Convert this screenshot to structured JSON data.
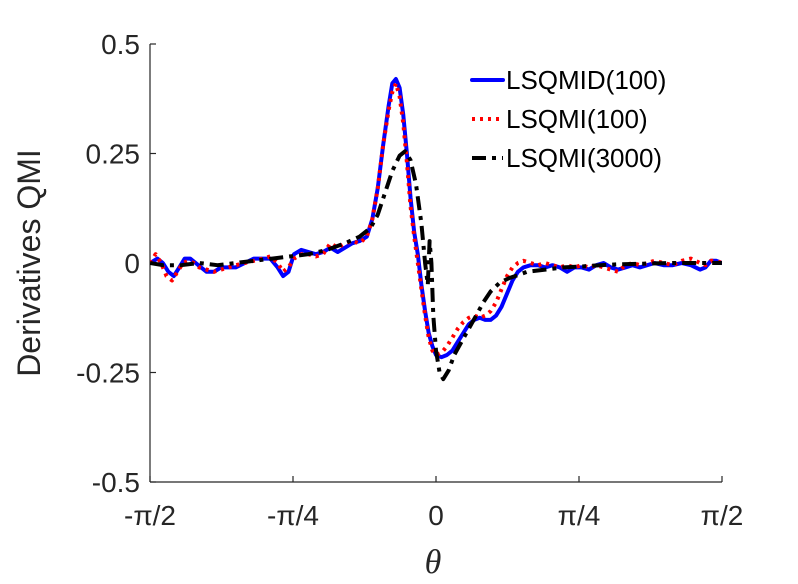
{
  "chart_data": {
    "type": "line",
    "xlabel": "θ",
    "ylabel": "Derivatives QMI",
    "xlim": [
      -1.5708,
      1.5708
    ],
    "ylim": [
      -0.5,
      0.5
    ],
    "x_ticks": [
      {
        "value": -1.5708,
        "label": "-π/2"
      },
      {
        "value": -0.7854,
        "label": "-π/4"
      },
      {
        "value": 0,
        "label": "0"
      },
      {
        "value": 0.7854,
        "label": "π/4"
      },
      {
        "value": 1.5708,
        "label": "π/2"
      }
    ],
    "y_ticks": [
      {
        "value": 0.5,
        "label": "0.5"
      },
      {
        "value": 0.25,
        "label": "0.25"
      },
      {
        "value": 0,
        "label": "0"
      },
      {
        "value": -0.25,
        "label": "-0.25"
      },
      {
        "value": -0.5,
        "label": "-0.5"
      }
    ],
    "grid": false,
    "legend_position": "top-right",
    "series": [
      {
        "name": "LSQMID(100)",
        "color": "#0000ff",
        "dash": "solid",
        "points": [
          [
            -1.57,
            0.0
          ],
          [
            -1.53,
            0.01
          ],
          [
            -1.5,
            0.0
          ],
          [
            -1.47,
            -0.02
          ],
          [
            -1.44,
            -0.03
          ],
          [
            -1.41,
            -0.01
          ],
          [
            -1.38,
            0.01
          ],
          [
            -1.35,
            0.01
          ],
          [
            -1.32,
            0.0
          ],
          [
            -1.29,
            -0.01
          ],
          [
            -1.26,
            -0.02
          ],
          [
            -1.22,
            -0.02
          ],
          [
            -1.18,
            -0.01
          ],
          [
            -1.14,
            -0.01
          ],
          [
            -1.1,
            -0.01
          ],
          [
            -1.05,
            0.0
          ],
          [
            -1.0,
            0.01
          ],
          [
            -0.95,
            0.01
          ],
          [
            -0.91,
            0.01
          ],
          [
            -0.87,
            -0.01
          ],
          [
            -0.84,
            -0.03
          ],
          [
            -0.81,
            -0.02
          ],
          [
            -0.78,
            0.02
          ],
          [
            -0.74,
            0.03
          ],
          [
            -0.7,
            0.025
          ],
          [
            -0.66,
            0.02
          ],
          [
            -0.62,
            0.025
          ],
          [
            -0.58,
            0.035
          ],
          [
            -0.54,
            0.025
          ],
          [
            -0.5,
            0.035
          ],
          [
            -0.46,
            0.045
          ],
          [
            -0.42,
            0.05
          ],
          [
            -0.38,
            0.06
          ],
          [
            -0.35,
            0.1
          ],
          [
            -0.32,
            0.17
          ],
          [
            -0.29,
            0.27
          ],
          [
            -0.26,
            0.36
          ],
          [
            -0.24,
            0.41
          ],
          [
            -0.22,
            0.42
          ],
          [
            -0.2,
            0.4
          ],
          [
            -0.18,
            0.34
          ],
          [
            -0.16,
            0.25
          ],
          [
            -0.14,
            0.15
          ],
          [
            -0.12,
            0.07
          ],
          [
            -0.1,
            0.02
          ],
          [
            -0.08,
            -0.05
          ],
          [
            -0.06,
            -0.11
          ],
          [
            -0.04,
            -0.16
          ],
          [
            -0.02,
            -0.19
          ],
          [
            0.0,
            -0.21
          ],
          [
            0.03,
            -0.215
          ],
          [
            0.06,
            -0.21
          ],
          [
            0.09,
            -0.2
          ],
          [
            0.12,
            -0.18
          ],
          [
            0.15,
            -0.16
          ],
          [
            0.18,
            -0.14
          ],
          [
            0.21,
            -0.13
          ],
          [
            0.24,
            -0.125
          ],
          [
            0.27,
            -0.13
          ],
          [
            0.3,
            -0.13
          ],
          [
            0.33,
            -0.12
          ],
          [
            0.36,
            -0.1
          ],
          [
            0.39,
            -0.07
          ],
          [
            0.42,
            -0.04
          ],
          [
            0.45,
            -0.02
          ],
          [
            0.48,
            -0.01
          ],
          [
            0.52,
            -0.005
          ],
          [
            0.56,
            -0.005
          ],
          [
            0.6,
            -0.01
          ],
          [
            0.64,
            -0.005
          ],
          [
            0.68,
            -0.01
          ],
          [
            0.72,
            -0.02
          ],
          [
            0.76,
            -0.01
          ],
          [
            0.8,
            -0.01
          ],
          [
            0.84,
            -0.015
          ],
          [
            0.88,
            -0.005
          ],
          [
            0.92,
            0.0
          ],
          [
            0.96,
            -0.01
          ],
          [
            1.0,
            -0.015
          ],
          [
            1.04,
            -0.01
          ],
          [
            1.08,
            -0.005
          ],
          [
            1.12,
            -0.01
          ],
          [
            1.16,
            -0.005
          ],
          [
            1.2,
            0.0
          ],
          [
            1.25,
            -0.005
          ],
          [
            1.3,
            -0.005
          ],
          [
            1.35,
            0.0
          ],
          [
            1.4,
            -0.005
          ],
          [
            1.45,
            -0.015
          ],
          [
            1.48,
            -0.01
          ],
          [
            1.51,
            0.005
          ],
          [
            1.54,
            0.005
          ],
          [
            1.57,
            0.0
          ]
        ]
      },
      {
        "name": "LSQMI(100)",
        "color": "#ff0000",
        "dash": "dotted",
        "points": [
          [
            -1.57,
            0.0
          ],
          [
            -1.54,
            0.02
          ],
          [
            -1.51,
            0.0
          ],
          [
            -1.48,
            -0.03
          ],
          [
            -1.45,
            -0.04
          ],
          [
            -1.42,
            -0.02
          ],
          [
            -1.39,
            0.0
          ],
          [
            -1.36,
            0.005
          ],
          [
            -1.33,
            0.0
          ],
          [
            -1.3,
            -0.01
          ],
          [
            -1.26,
            -0.015
          ],
          [
            -1.22,
            -0.02
          ],
          [
            -1.18,
            -0.015
          ],
          [
            -1.14,
            -0.01
          ],
          [
            -1.1,
            -0.005
          ],
          [
            -1.05,
            0.0
          ],
          [
            -1.0,
            0.005
          ],
          [
            -0.95,
            0.01
          ],
          [
            -0.91,
            0.015
          ],
          [
            -0.87,
            0.0
          ],
          [
            -0.84,
            -0.02
          ],
          [
            -0.81,
            -0.01
          ],
          [
            -0.78,
            0.01
          ],
          [
            -0.74,
            0.02
          ],
          [
            -0.7,
            0.02
          ],
          [
            -0.66,
            0.015
          ],
          [
            -0.62,
            0.02
          ],
          [
            -0.58,
            0.045
          ],
          [
            -0.54,
            0.035
          ],
          [
            -0.5,
            0.045
          ],
          [
            -0.46,
            0.05
          ],
          [
            -0.42,
            0.045
          ],
          [
            -0.38,
            0.06
          ],
          [
            -0.35,
            0.1
          ],
          [
            -0.32,
            0.17
          ],
          [
            -0.29,
            0.27
          ],
          [
            -0.26,
            0.35
          ],
          [
            -0.24,
            0.39
          ],
          [
            -0.22,
            0.41
          ],
          [
            -0.2,
            0.38
          ],
          [
            -0.18,
            0.32
          ],
          [
            -0.16,
            0.23
          ],
          [
            -0.14,
            0.13
          ],
          [
            -0.12,
            0.06
          ],
          [
            -0.1,
            0.0
          ],
          [
            -0.08,
            -0.06
          ],
          [
            -0.06,
            -0.12
          ],
          [
            -0.04,
            -0.17
          ],
          [
            -0.02,
            -0.2
          ],
          [
            0.0,
            -0.21
          ],
          [
            0.03,
            -0.205
          ],
          [
            0.06,
            -0.19
          ],
          [
            0.09,
            -0.17
          ],
          [
            0.12,
            -0.15
          ],
          [
            0.15,
            -0.135
          ],
          [
            0.18,
            -0.125
          ],
          [
            0.21,
            -0.12
          ],
          [
            0.24,
            -0.125
          ],
          [
            0.27,
            -0.12
          ],
          [
            0.3,
            -0.11
          ],
          [
            0.33,
            -0.09
          ],
          [
            0.36,
            -0.06
          ],
          [
            0.39,
            -0.03
          ],
          [
            0.42,
            -0.01
          ],
          [
            0.45,
            0.0
          ],
          [
            0.48,
            0.005
          ],
          [
            0.52,
            0.0
          ],
          [
            0.56,
            -0.005
          ],
          [
            0.6,
            0.0
          ],
          [
            0.64,
            -0.005
          ],
          [
            0.68,
            -0.01
          ],
          [
            0.72,
            -0.005
          ],
          [
            0.76,
            -0.01
          ],
          [
            0.8,
            -0.005
          ],
          [
            0.84,
            -0.01
          ],
          [
            0.88,
            -0.005
          ],
          [
            0.92,
            -0.01
          ],
          [
            0.96,
            -0.015
          ],
          [
            1.0,
            -0.02
          ],
          [
            1.04,
            -0.005
          ],
          [
            1.08,
            0.0
          ],
          [
            1.12,
            -0.005
          ],
          [
            1.16,
            0.0
          ],
          [
            1.2,
            0.005
          ],
          [
            1.25,
            0.0
          ],
          [
            1.3,
            -0.005
          ],
          [
            1.35,
            0.005
          ],
          [
            1.4,
            0.01
          ],
          [
            1.45,
            0.0
          ],
          [
            1.48,
            -0.005
          ],
          [
            1.51,
            0.005
          ],
          [
            1.54,
            0.005
          ],
          [
            1.57,
            0.0
          ]
        ]
      },
      {
        "name": "LSQMI(3000)",
        "color": "#000000",
        "dash": "dashdot",
        "points": [
          [
            -1.57,
            0.0
          ],
          [
            -1.5,
            -0.005
          ],
          [
            -1.4,
            -0.005
          ],
          [
            -1.3,
            0.0
          ],
          [
            -1.2,
            -0.005
          ],
          [
            -1.1,
            0.0
          ],
          [
            -1.0,
            0.005
          ],
          [
            -0.9,
            0.01
          ],
          [
            -0.8,
            0.015
          ],
          [
            -0.7,
            0.02
          ],
          [
            -0.6,
            0.03
          ],
          [
            -0.5,
            0.045
          ],
          [
            -0.42,
            0.06
          ],
          [
            -0.36,
            0.08
          ],
          [
            -0.32,
            0.11
          ],
          [
            -0.28,
            0.16
          ],
          [
            -0.24,
            0.21
          ],
          [
            -0.2,
            0.245
          ],
          [
            -0.17,
            0.255
          ],
          [
            -0.14,
            0.235
          ],
          [
            -0.11,
            0.18
          ],
          [
            -0.08,
            0.09
          ],
          [
            -0.06,
            0.0
          ],
          [
            -0.045,
            -0.05
          ],
          [
            -0.035,
            0.05
          ],
          [
            -0.025,
            0.0
          ],
          [
            -0.015,
            -0.12
          ],
          [
            0.0,
            -0.2
          ],
          [
            0.02,
            -0.25
          ],
          [
            0.04,
            -0.265
          ],
          [
            0.07,
            -0.245
          ],
          [
            0.1,
            -0.21
          ],
          [
            0.14,
            -0.18
          ],
          [
            0.18,
            -0.15
          ],
          [
            0.22,
            -0.12
          ],
          [
            0.26,
            -0.09
          ],
          [
            0.3,
            -0.065
          ],
          [
            0.35,
            -0.045
          ],
          [
            0.4,
            -0.035
          ],
          [
            0.5,
            -0.02
          ],
          [
            0.6,
            -0.015
          ],
          [
            0.7,
            -0.01
          ],
          [
            0.8,
            -0.008
          ],
          [
            0.9,
            -0.005
          ],
          [
            1.0,
            -0.003
          ],
          [
            1.1,
            -0.002
          ],
          [
            1.2,
            -0.001
          ],
          [
            1.3,
            0.0
          ],
          [
            1.4,
            0.0
          ],
          [
            1.5,
            0.0
          ],
          [
            1.57,
            0.0
          ]
        ]
      }
    ]
  }
}
